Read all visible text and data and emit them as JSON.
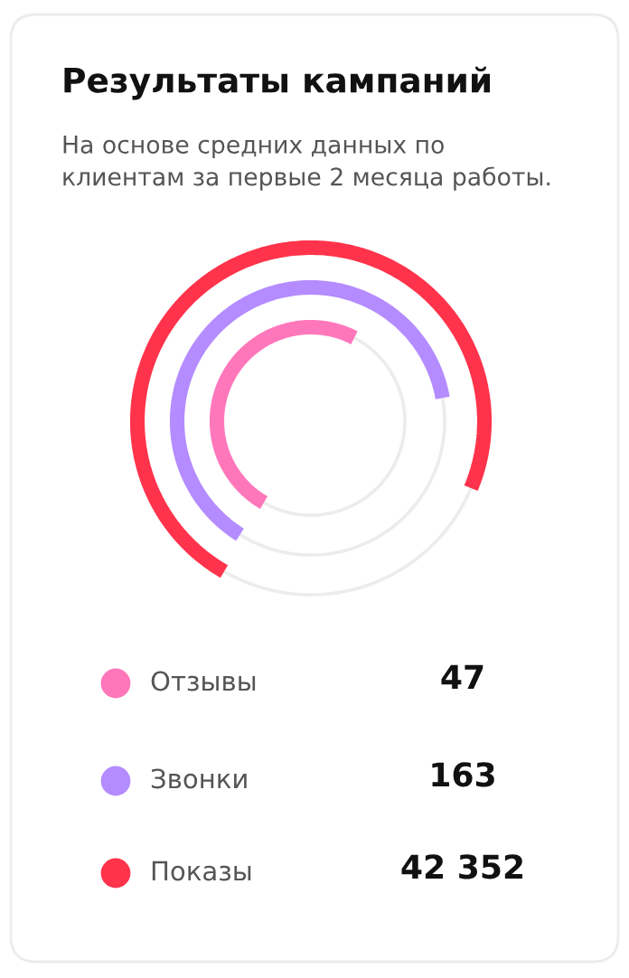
{
  "chart_data": {
    "type": "other",
    "title": "Результаты кампаний",
    "subtitle": "На основе средних данных по\nклиентам за первые 2 месяца работы.",
    "categories": [
      "Отзывы",
      "Звонки",
      "Показы"
    ],
    "values": [
      47,
      163,
      42352
    ],
    "data_labels": true,
    "colors": [
      "#ff77bb",
      "#b48cff",
      "#ff334b"
    ]
  }
}
